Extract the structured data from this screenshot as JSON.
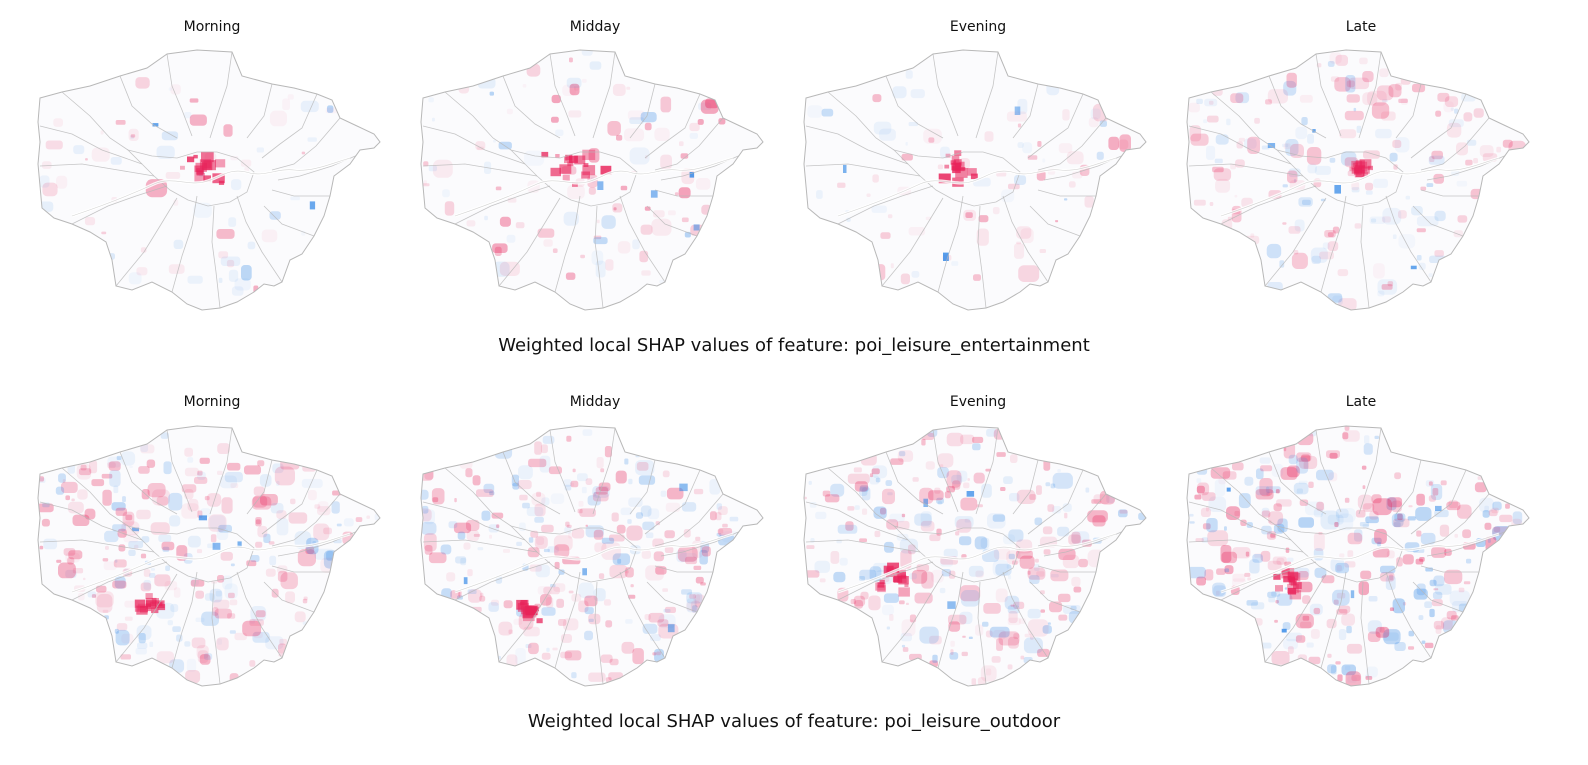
{
  "sections": [
    {
      "caption": "Weighted local SHAP values of feature: poi_leisure_entertainment",
      "panels": [
        "Morning",
        "Midday",
        "Evening",
        "Late"
      ]
    },
    {
      "caption": "Weighted local SHAP values of feature: poi_leisure_outdoor",
      "panels": [
        "Morning",
        "Midday",
        "Evening",
        "Late"
      ]
    }
  ],
  "colors": {
    "positive": "#e8235a",
    "negative": "#2f86e6",
    "boundary": "#b8b8b8"
  }
}
